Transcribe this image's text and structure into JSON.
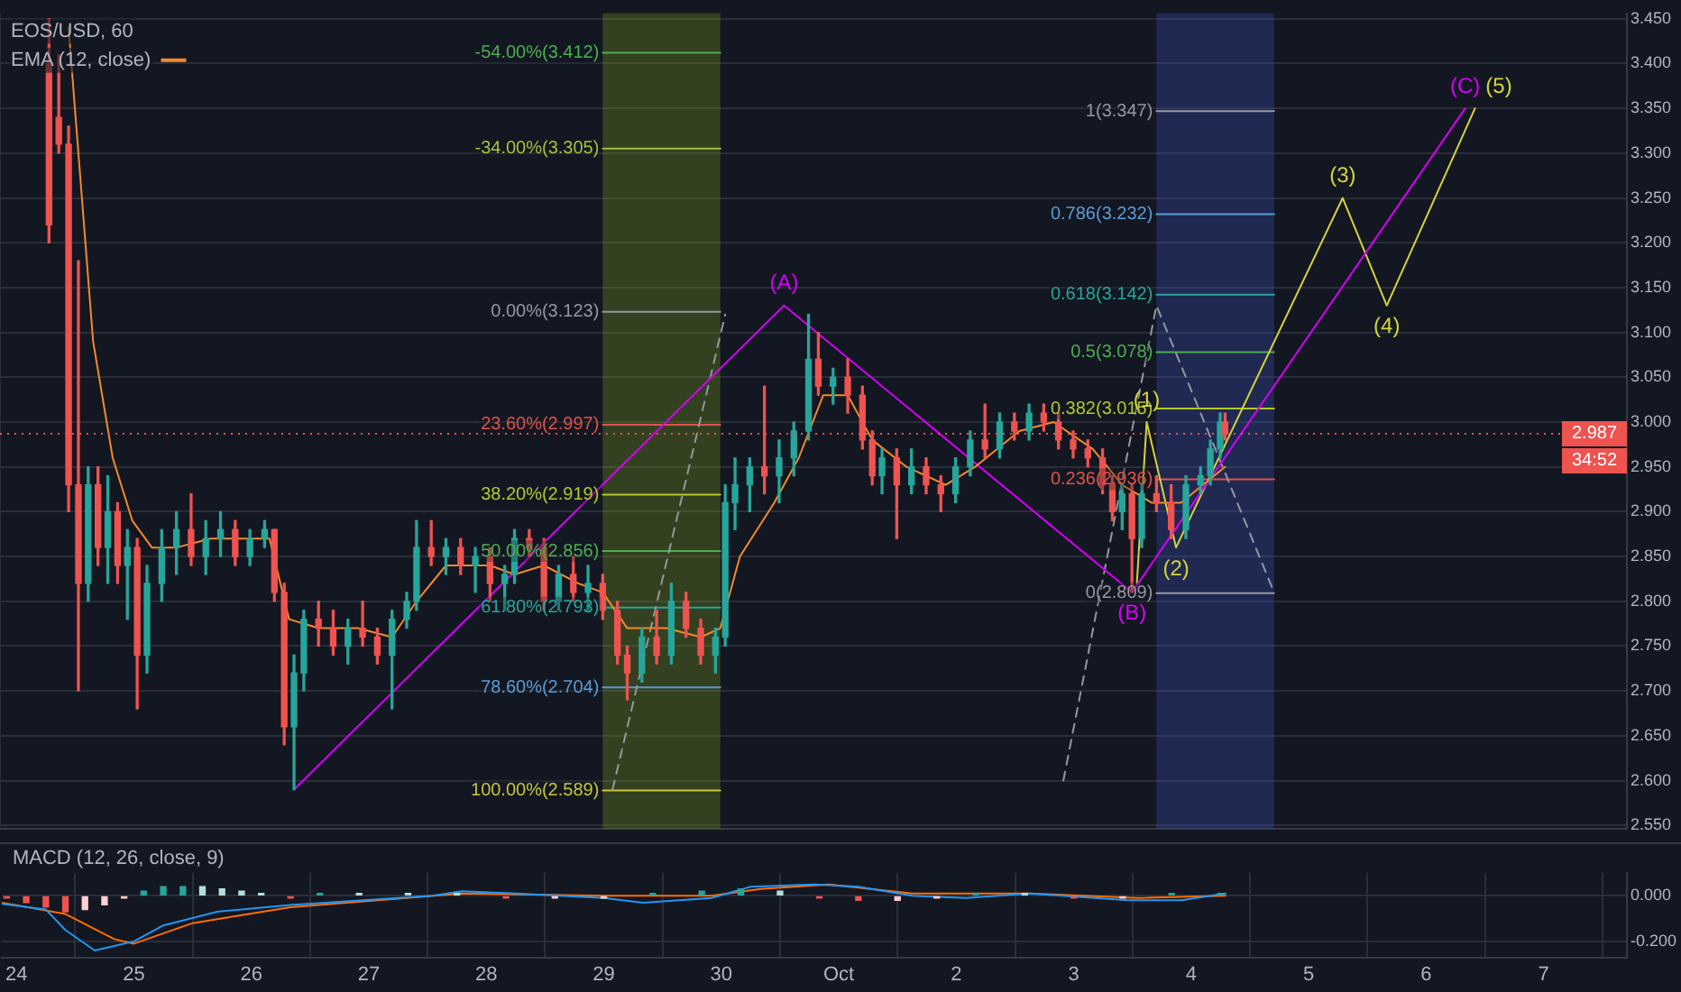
{
  "chart_data": [
    {
      "type": "candlestick",
      "title": "EOS/USD, 60",
      "x": [
        "--09-24T07:00",
        "--09-24T09:00",
        "--09-24T11:00",
        "--09-24T13:00",
        "--09-24T15:00",
        "--09-24T17:00",
        "--09-24T19:00",
        "--09-24T21:00",
        "--09-24T23:00",
        "--09-25T01:00",
        "--09-25T03:00",
        "--09-25T06:00",
        "--09-25T09:00",
        "--09-25T12:00",
        "--09-25T15:00",
        "--09-25T18:00",
        "--09-25T21:00",
        "--09-26T00:00",
        "--09-26T03:00",
        "--09-26T05:00",
        "--09-26T07:00",
        "--09-26T09:00",
        "--09-26T11:00",
        "--09-26T14:00",
        "--09-26T17:00",
        "--09-26T20:00",
        "--09-26T23:00",
        "--09-27T02:00",
        "--09-27T05:00",
        "--09-27T08:00",
        "--09-27T10:00",
        "--09-27T13:00",
        "--09-27T16:00",
        "--09-27T19:00",
        "--09-27T22:00",
        "--09-28T01:00",
        "--09-28T04:00",
        "--09-28T06:00",
        "--09-28T09:00",
        "--09-28T12:00",
        "--09-28T15:00",
        "--09-28T18:00",
        "--09-28T21:00",
        "--09-29T00:00",
        "--09-29T03:00",
        "--09-29T05:00",
        "--09-29T08:00",
        "--09-29T11:00",
        "--09-29T14:00",
        "--09-29T17:00",
        "--09-29T20:00",
        "--09-29T23:00",
        "--09-30T01:00",
        "--09-30T03:00",
        "--09-30T06:00",
        "--09-30T09:00",
        "--09-30T12:00",
        "--09-30T15:00",
        "--09-30T18:00",
        "--09-30T20:00",
        "--09-30T23:00",
        "--10-01T02:00",
        "--10-01T05:00",
        "--10-01T07:00",
        "--10-01T09:00",
        "--10-01T12:00",
        "--10-01T15:00",
        "--10-01T18:00",
        "--10-01T21:00",
        "--10-02T00:00",
        "--10-02T03:00",
        "--10-02T06:00",
        "--10-02T09:00",
        "--10-02T12:00",
        "--10-02T15:00",
        "--10-02T18:00",
        "--10-02T21:00",
        "--10-03T00:00",
        "--10-03T03:00",
        "--10-03T06:00",
        "--10-03T08:00",
        "--10-03T10:00",
        "--10-03T12:00",
        "--10-03T14:00",
        "--10-03T17:00",
        "--10-03T20:00",
        "--10-03T23:00",
        "--10-04T02:00",
        "--10-04T04:00",
        "--10-04T06:00",
        "--10-04T07:00"
      ],
      "ohlc": [
        [
          3.4,
          3.45,
          3.2,
          3.22
        ],
        [
          3.34,
          3.41,
          3.3,
          3.31
        ],
        [
          3.31,
          3.33,
          2.9,
          2.93
        ],
        [
          2.93,
          3.18,
          2.7,
          2.82
        ],
        [
          2.82,
          2.95,
          2.8,
          2.93
        ],
        [
          2.93,
          2.95,
          2.84,
          2.86
        ],
        [
          2.86,
          2.94,
          2.82,
          2.9
        ],
        [
          2.9,
          2.91,
          2.82,
          2.84
        ],
        [
          2.84,
          2.88,
          2.78,
          2.86
        ],
        [
          2.86,
          2.87,
          2.68,
          2.74
        ],
        [
          2.74,
          2.84,
          2.72,
          2.82
        ],
        [
          2.82,
          2.88,
          2.8,
          2.86
        ],
        [
          2.86,
          2.9,
          2.83,
          2.88
        ],
        [
          2.88,
          2.92,
          2.84,
          2.85
        ],
        [
          2.85,
          2.89,
          2.83,
          2.87
        ],
        [
          2.87,
          2.9,
          2.85,
          2.88
        ],
        [
          2.88,
          2.89,
          2.84,
          2.85
        ],
        [
          2.85,
          2.88,
          2.84,
          2.87
        ],
        [
          2.87,
          2.89,
          2.86,
          2.88
        ],
        [
          2.88,
          2.88,
          2.8,
          2.81
        ],
        [
          2.81,
          2.82,
          2.64,
          2.66
        ],
        [
          2.66,
          2.74,
          2.59,
          2.72
        ],
        [
          2.72,
          2.79,
          2.7,
          2.78
        ],
        [
          2.78,
          2.8,
          2.75,
          2.77
        ],
        [
          2.77,
          2.79,
          2.74,
          2.75
        ],
        [
          2.75,
          2.78,
          2.73,
          2.77
        ],
        [
          2.77,
          2.8,
          2.75,
          2.76
        ],
        [
          2.76,
          2.77,
          2.73,
          2.74
        ],
        [
          2.74,
          2.79,
          2.68,
          2.78
        ],
        [
          2.78,
          2.81,
          2.77,
          2.8
        ],
        [
          2.8,
          2.89,
          2.79,
          2.86
        ],
        [
          2.86,
          2.89,
          2.84,
          2.85
        ],
        [
          2.85,
          2.87,
          2.83,
          2.86
        ],
        [
          2.86,
          2.87,
          2.83,
          2.84
        ],
        [
          2.84,
          2.86,
          2.81,
          2.85
        ],
        [
          2.85,
          2.86,
          2.8,
          2.82
        ],
        [
          2.82,
          2.84,
          2.79,
          2.83
        ],
        [
          2.83,
          2.88,
          2.82,
          2.87
        ],
        [
          2.87,
          2.88,
          2.85,
          2.86
        ],
        [
          2.86,
          2.87,
          2.79,
          2.8
        ],
        [
          2.8,
          2.84,
          2.79,
          2.83
        ],
        [
          2.83,
          2.85,
          2.8,
          2.81
        ],
        [
          2.81,
          2.84,
          2.79,
          2.82
        ],
        [
          2.82,
          2.83,
          2.78,
          2.79
        ],
        [
          2.79,
          2.8,
          2.73,
          2.74
        ],
        [
          2.74,
          2.75,
          2.69,
          2.72
        ],
        [
          2.72,
          2.77,
          2.71,
          2.76
        ],
        [
          2.76,
          2.79,
          2.73,
          2.74
        ],
        [
          2.74,
          2.82,
          2.73,
          2.8
        ],
        [
          2.8,
          2.81,
          2.76,
          2.77
        ],
        [
          2.77,
          2.78,
          2.73,
          2.74
        ],
        [
          2.74,
          2.77,
          2.72,
          2.76
        ],
        [
          2.76,
          2.93,
          2.75,
          2.91
        ],
        [
          2.91,
          2.96,
          2.88,
          2.93
        ],
        [
          2.93,
          2.96,
          2.9,
          2.95
        ],
        [
          2.95,
          3.04,
          2.92,
          2.94
        ],
        [
          2.94,
          2.98,
          2.91,
          2.96
        ],
        [
          2.96,
          3.0,
          2.94,
          2.99
        ],
        [
          2.99,
          3.12,
          2.98,
          3.07
        ],
        [
          3.07,
          3.1,
          3.03,
          3.04
        ],
        [
          3.04,
          3.06,
          3.02,
          3.05
        ],
        [
          3.05,
          3.07,
          3.01,
          3.03
        ],
        [
          3.03,
          3.04,
          2.97,
          2.98
        ],
        [
          2.98,
          2.99,
          2.93,
          2.94
        ],
        [
          2.94,
          2.97,
          2.92,
          2.96
        ],
        [
          2.96,
          2.97,
          2.87,
          2.93
        ],
        [
          2.93,
          2.97,
          2.92,
          2.95
        ],
        [
          2.95,
          2.96,
          2.92,
          2.93
        ],
        [
          2.93,
          2.94,
          2.9,
          2.92
        ],
        [
          2.92,
          2.96,
          2.91,
          2.95
        ],
        [
          2.95,
          2.99,
          2.94,
          2.98
        ],
        [
          2.98,
          3.02,
          2.96,
          2.97
        ],
        [
          2.97,
          3.01,
          2.96,
          3.0
        ],
        [
          3.0,
          3.01,
          2.98,
          2.99
        ],
        [
          2.99,
          3.02,
          2.98,
          3.01
        ],
        [
          3.01,
          3.02,
          2.99,
          3.0
        ],
        [
          3.0,
          3.01,
          2.97,
          2.98
        ],
        [
          2.98,
          2.99,
          2.96,
          2.97
        ],
        [
          2.97,
          2.98,
          2.95,
          2.96
        ],
        [
          2.96,
          2.97,
          2.92,
          2.93
        ],
        [
          2.93,
          2.94,
          2.89,
          2.9
        ],
        [
          2.9,
          2.93,
          2.88,
          2.92
        ],
        [
          2.92,
          2.93,
          2.81,
          2.87
        ],
        [
          2.87,
          2.93,
          2.86,
          2.92
        ],
        [
          2.92,
          2.94,
          2.9,
          2.91
        ],
        [
          2.91,
          2.93,
          2.87,
          2.88
        ],
        [
          2.88,
          2.94,
          2.87,
          2.93
        ],
        [
          2.93,
          2.95,
          2.92,
          2.94
        ],
        [
          2.94,
          2.98,
          2.93,
          2.97
        ],
        [
          2.97,
          3.01,
          2.96,
          3.0
        ],
        [
          3.0,
          3.01,
          2.98,
          2.987
        ]
      ],
      "colors": [
        "#ef5350",
        "#ef5350",
        "#ef5350",
        "#ef5350",
        "#26a69a",
        "#ef5350",
        "#26a69a",
        "#ef5350",
        "#26a69a",
        "#ef5350",
        "#26a69a",
        "#26a69a",
        "#26a69a",
        "#ef5350",
        "#26a69a",
        "#26a69a",
        "#ef5350",
        "#26a69a",
        "#26a69a",
        "#ef5350",
        "#ef5350",
        "#26a69a",
        "#26a69a",
        "#ef5350",
        "#ef5350",
        "#26a69a",
        "#ef5350",
        "#ef5350",
        "#26a69a",
        "#26a69a",
        "#26a69a",
        "#ef5350",
        "#26a69a",
        "#ef5350",
        "#26a69a",
        "#ef5350",
        "#26a69a",
        "#26a69a",
        "#ef5350",
        "#ef5350",
        "#26a69a",
        "#ef5350",
        "#26a69a",
        "#ef5350",
        "#ef5350",
        "#ef5350",
        "#26a69a",
        "#ef5350",
        "#26a69a",
        "#ef5350",
        "#ef5350",
        "#26a69a",
        "#26a69a",
        "#26a69a",
        "#26a69a",
        "#ef5350",
        "#26a69a",
        "#26a69a",
        "#26a69a",
        "#ef5350",
        "#26a69a",
        "#ef5350",
        "#ef5350",
        "#ef5350",
        "#26a69a",
        "#ef5350",
        "#26a69a",
        "#ef5350",
        "#ef5350",
        "#26a69a",
        "#26a69a",
        "#ef5350",
        "#26a69a",
        "#ef5350",
        "#26a69a",
        "#ef5350",
        "#ef5350",
        "#ef5350",
        "#ef5350",
        "#ef5350",
        "#ef5350",
        "#26a69a",
        "#ef5350",
        "#26a69a",
        "#ef5350",
        "#ef5350",
        "#26a69a",
        "#26a69a",
        "#26a69a",
        "#26a69a",
        "#ef5350"
      ],
      "series": [
        {
          "name": "EMA (12, close)",
          "type": "line",
          "color": "#f5892b",
          "x": [
            "--09-24T11:00",
            "--09-24T13:00",
            "--09-24T16:00",
            "--09-24T20:00",
            "--09-25T00:00",
            "--09-25T04:00",
            "--09-25T09:00",
            "--09-25T16:00",
            "--09-26T00:00",
            "--09-26T04:00",
            "--09-26T08:00",
            "--09-26T14:00",
            "--09-26T22:00",
            "--09-27T05:00",
            "--09-27T10:00",
            "--09-27T16:00",
            "--09-28T01:00",
            "--09-28T06:00",
            "--09-28T12:00",
            "--09-28T19:00",
            "--09-29T00:00",
            "--09-29T05:00",
            "--09-29T13:00",
            "--09-29T20:00",
            "--09-30T00:00",
            "--09-30T04:00",
            "--09-30T11:00",
            "--09-30T16:00",
            "--09-30T21:00",
            "--10-01T02:00",
            "--10-01T07:00",
            "--10-01T14:00",
            "--10-01T22:00",
            "--10-02T04:00",
            "--10-02T13:00",
            "--10-02T20:00",
            "--10-03T04:00",
            "--10-03T10:00",
            "--10-03T16:00",
            "--10-03T22:00",
            "--10-04T07:00"
          ],
          "values": [
            3.44,
            3.3,
            3.09,
            2.96,
            2.89,
            2.86,
            2.86,
            2.87,
            2.87,
            2.87,
            2.78,
            2.77,
            2.77,
            2.76,
            2.8,
            2.84,
            2.84,
            2.83,
            2.84,
            2.82,
            2.81,
            2.77,
            2.77,
            2.76,
            2.77,
            2.85,
            2.91,
            2.96,
            3.03,
            3.03,
            2.98,
            2.95,
            2.93,
            2.95,
            2.99,
            3.0,
            2.97,
            2.93,
            2.91,
            2.91,
            2.95
          ]
        },
        {
          "type": "line",
          "color": "#d500f9",
          "x": [
            "--09-26T09:00",
            "--09-30T13:00",
            "--10-03T12:00",
            "--10-06T08:00"
          ],
          "values": [
            2.59,
            3.13,
            2.81,
            3.35
          ]
        },
        {
          "type": "line",
          "color": "#d4d43a",
          "x": [
            "--10-03T13:00",
            "--10-03T15:00",
            "--10-03T21:00",
            "--10-05T07:00",
            "--10-05T16:00",
            "--10-06T10:00"
          ],
          "values": [
            2.82,
            3.0,
            2.86,
            3.25,
            3.13,
            3.35
          ]
        },
        {
          "type": "line",
          "color": "#9598a1",
          "line_style": "dashed",
          "x": [
            "--09-29T02:00",
            "--09-30T01:00"
          ],
          "values": [
            2.59,
            3.12
          ]
        },
        {
          "type": "line",
          "color": "#9598a1",
          "line_style": "dashed",
          "x": [
            "--10-02T22:00",
            "--10-03T17:00",
            "--10-04T17:00"
          ],
          "values": [
            2.6,
            3.13,
            2.81
          ]
        },
        {
          "name": "-54.00%(3.412)",
          "type": "line",
          "color": "#4caf50",
          "x": [
            "--09-29T00:00",
            "--09-30T00:00"
          ],
          "values": [
            3.412,
            3.412
          ]
        },
        {
          "name": "-34.00%(3.305)",
          "type": "line",
          "color": "#a5c13a",
          "x": [
            "--09-29T00:00",
            "--09-30T00:00"
          ],
          "values": [
            3.305,
            3.305
          ]
        },
        {
          "name": "0.00%(3.123)",
          "type": "line",
          "color": "#9598a1",
          "x": [
            "--09-29T00:00",
            "--09-30T00:00"
          ],
          "values": [
            3.123,
            3.123
          ]
        },
        {
          "name": "23.60%(2.997)",
          "type": "line",
          "color": "#e0524a",
          "x": [
            "--09-29T00:00",
            "--09-30T00:00"
          ],
          "values": [
            2.997,
            2.997
          ]
        },
        {
          "name": "38.20%(2.919)",
          "type": "line",
          "color": "#b5c72b",
          "x": [
            "--09-29T00:00",
            "--09-30T00:00"
          ],
          "values": [
            2.919,
            2.919
          ]
        },
        {
          "name": "50.00%(2.856)",
          "type": "line",
          "color": "#4caf50",
          "x": [
            "--09-29T00:00",
            "--09-30T00:00"
          ],
          "values": [
            2.856,
            2.856
          ]
        },
        {
          "name": "61.80%(2.793)",
          "type": "line",
          "color": "#26a69a",
          "x": [
            "--09-29T00:00",
            "--09-30T00:00"
          ],
          "values": [
            2.793,
            2.793
          ]
        },
        {
          "name": "78.60%(2.704)",
          "type": "line",
          "color": "#5b9bd5",
          "x": [
            "--09-29T00:00",
            "--09-30T00:00"
          ],
          "values": [
            2.704,
            2.704
          ]
        },
        {
          "name": "100.00%(2.589)",
          "type": "line",
          "color": "#c6c63a",
          "x": [
            "--09-29T00:00",
            "--09-30T00:00"
          ],
          "values": [
            2.589,
            2.589
          ]
        },
        {
          "name": "1(3.347)",
          "type": "line",
          "color": "#9598a1",
          "x": [
            "--10-03T17:00",
            "--10-04T17:00"
          ],
          "values": [
            3.347,
            3.347
          ]
        },
        {
          "name": "0.786(3.232)",
          "type": "line",
          "color": "#5b9bd5",
          "x": [
            "--10-03T17:00",
            "--10-04T17:00"
          ],
          "values": [
            3.232,
            3.232
          ]
        },
        {
          "name": "0.618(3.142)",
          "type": "line",
          "color": "#26a69a",
          "x": [
            "--10-03T17:00",
            "--10-04T17:00"
          ],
          "values": [
            3.142,
            3.142
          ]
        },
        {
          "name": "0.5(3.078)",
          "type": "line",
          "color": "#4caf50",
          "x": [
            "--10-03T17:00",
            "--10-04T17:00"
          ],
          "values": [
            3.078,
            3.078
          ]
        },
        {
          "name": "0.382(3.015)",
          "type": "line",
          "color": "#b5c72b",
          "x": [
            "--10-03T17:00",
            "--10-04T17:00"
          ],
          "values": [
            3.015,
            3.015
          ]
        },
        {
          "name": "0.236(2.936)",
          "type": "line",
          "color": "#e0524a",
          "x": [
            "--10-03T17:00",
            "--10-04T17:00"
          ],
          "values": [
            2.936,
            2.936
          ]
        },
        {
          "name": "0(2.809)",
          "type": "line",
          "color": "#9598a1",
          "x": [
            "--10-03T17:00",
            "--10-04T17:00"
          ],
          "values": [
            2.809,
            2.809
          ]
        }
      ],
      "bands": [
        {
          "axis": "x",
          "from": "--09-29T00:00",
          "to": "--09-30T00:00",
          "color": "#7d9a1e"
        },
        {
          "axis": "x",
          "from": "--10-03T17:00",
          "to": "--10-04T17:00",
          "color": "#3f51b5"
        }
      ],
      "ref_lines": [
        {
          "axis": "y",
          "value": 2.987,
          "label": "2.987",
          "color": "#ef5350",
          "line_style": "dotted"
        }
      ],
      "annotations": [
        "34:52",
        {
          "text": "(A)",
          "x": "--09-30T13:00",
          "y": 3.13
        },
        {
          "text": "(B)",
          "x": "--10-03T12:00",
          "y": 2.81
        },
        {
          "text": "(C)",
          "x": "--10-06T08:00",
          "y": 3.35
        },
        {
          "text": "(1)",
          "x": "--10-03T15:00",
          "y": 3.0
        },
        {
          "text": "(2)",
          "x": "--10-03T21:00",
          "y": 2.86
        },
        {
          "text": "(3)",
          "x": "--10-05T07:00",
          "y": 3.25
        },
        {
          "text": "(4)",
          "x": "--10-05T16:00",
          "y": 3.13
        },
        {
          "text": "(5)",
          "x": "--10-06T10:00",
          "y": 3.35
        }
      ],
      "xlim": [
        "--09-23T21:00",
        "--10-07T17:00"
      ],
      "ylim": [
        2.546,
        3.456
      ],
      "xticks": [
        {
          "value": "--09-24",
          "label": null
        },
        {
          "value": "--09-25",
          "label": null
        },
        {
          "value": "--09-26",
          "label": null
        },
        {
          "value": "--09-27",
          "label": null
        },
        {
          "value": "--09-28",
          "label": null
        },
        {
          "value": "--09-29",
          "label": null
        },
        {
          "value": "--09-30",
          "label": null
        },
        {
          "value": "--10-01",
          "label": null
        },
        {
          "value": "--10-02",
          "label": null
        },
        {
          "value": "--10-03",
          "label": null
        },
        {
          "value": "--10-04",
          "label": null
        },
        {
          "value": "--10-05",
          "label": null
        },
        {
          "value": "--10-06",
          "label": null
        },
        {
          "value": "--10-07",
          "label": null
        }
      ],
      "yticks": [
        {
          "value": 2.55,
          "label": "2.550"
        },
        {
          "value": 2.6,
          "label": "2.600"
        },
        {
          "value": 2.65,
          "label": "2.650"
        },
        {
          "value": 2.7,
          "label": "2.700"
        },
        {
          "value": 2.75,
          "label": "2.750"
        },
        {
          "value": 2.8,
          "label": "2.800"
        },
        {
          "value": 2.85,
          "label": "2.850"
        },
        {
          "value": 2.9,
          "label": "2.900"
        },
        {
          "value": 2.95,
          "label": "2.950"
        },
        {
          "value": 3.0,
          "label": "3.000"
        },
        {
          "value": 3.05,
          "label": "3.050"
        },
        {
          "value": 3.1,
          "label": "3.100"
        },
        {
          "value": 3.15,
          "label": "3.150"
        },
        {
          "value": 3.2,
          "label": "3.200"
        },
        {
          "value": 3.25,
          "label": "3.250"
        },
        {
          "value": 3.3,
          "label": "3.300"
        },
        {
          "value": 3.35,
          "label": "3.350"
        },
        {
          "value": 3.4,
          "label": "3.400"
        },
        {
          "value": 3.45,
          "label": "3.450"
        }
      ],
      "tick_labels": "y",
      "grid": true,
      "legend": "top left"
    },
    {
      "type": "line",
      "title": "MACD (12, 26, close, 9)",
      "series": [
        {
          "type": "bar",
          "x": [
            "--09-23T22:00",
            "--09-24T02:00",
            "--09-24T06:00",
            "--09-24T10:00",
            "--09-24T14:00",
            "--09-24T18:00",
            "--09-24T22:00",
            "--09-25T02:00",
            "--09-25T06:00",
            "--09-25T10:00",
            "--09-25T14:00",
            "--09-25T18:00",
            "--09-25T22:00",
            "--09-26T02:00",
            "--09-26T08:00",
            "--09-26T14:00",
            "--09-26T22:00",
            "--09-27T08:00",
            "--09-27T18:00",
            "--09-28T04:00",
            "--09-28T14:00",
            "--09-29T00:00",
            "--09-29T10:00",
            "--09-29T20:00",
            "--09-30T04:00",
            "--09-30T12:00",
            "--09-30T20:00",
            "--10-01T04:00",
            "--10-01T12:00",
            "--10-01T20:00",
            "--10-02T04:00",
            "--10-02T14:00",
            "--10-03T00:00",
            "--10-03T10:00",
            "--10-03T20:00",
            "--10-04T06:00"
          ],
          "values": [
            -0.01,
            -0.03,
            -0.05,
            -0.07,
            -0.06,
            -0.04,
            -0.01,
            0.02,
            0.04,
            0.04,
            0.04,
            0.03,
            0.02,
            0.01,
            -0.01,
            0.01,
            0.01,
            0.01,
            0.01,
            -0.01,
            -0.01,
            -0.01,
            0.01,
            0.02,
            0.03,
            0.02,
            -0.01,
            -0.02,
            -0.02,
            -0.01,
            0.01,
            0.01,
            -0.01,
            -0.01,
            0.01,
            0.01
          ],
          "colors": [
            "#ef5350",
            "#ef5350",
            "#ef5350",
            "#ef5350",
            "#ffcdd2",
            "#ffcdd2",
            "#ffcdd2",
            "#26a69a",
            "#26a69a",
            "#26a69a",
            "#b2dfdb",
            "#b2dfdb",
            "#b2dfdb",
            "#b2dfdb",
            "#ef5350",
            "#26a69a",
            "#b2dfdb",
            "#b2dfdb",
            "#b2dfdb",
            "#ef5350",
            "#ffcdd2",
            "#ffcdd2",
            "#26a69a",
            "#26a69a",
            "#26a69a",
            "#b2dfdb",
            "#ef5350",
            "#ef5350",
            "#ffcdd2",
            "#ffcdd2",
            "#26a69a",
            "#b2dfdb",
            "#ef5350",
            "#ffcdd2",
            "#26a69a",
            "#26a69a"
          ]
        },
        {
          "type": "line",
          "color": "#2196f3",
          "x": [
            "--09-23T21:00",
            "--09-24T06:00",
            "--09-24T10:00",
            "--09-24T16:00",
            "--09-25T00:00",
            "--09-25T06:00",
            "--09-25T17:00",
            "--09-26T08:00",
            "--09-27T13:00",
            "--09-27T19:00",
            "--09-28T06:00",
            "--09-29T00:00",
            "--09-29T08:00",
            "--09-29T22:00",
            "--09-30T06:00",
            "--09-30T19:00",
            "--10-01T04:00",
            "--10-01T15:00",
            "--10-02T02:00",
            "--10-02T15:00",
            "--10-03T11:00",
            "--10-03T22:00",
            "--10-04T07:00"
          ],
          "values": [
            -0.035,
            -0.06,
            -0.15,
            -0.24,
            -0.2,
            -0.13,
            -0.07,
            -0.04,
            0.0,
            0.02,
            0.01,
            -0.01,
            -0.03,
            -0.01,
            0.04,
            0.05,
            0.04,
            0.0,
            -0.01,
            0.01,
            -0.02,
            -0.02,
            0.01
          ]
        },
        {
          "type": "line",
          "color": "#ff6d00",
          "x": [
            "--09-23T21:00",
            "--09-24T10:00",
            "--09-24T20:00",
            "--09-25T00:00",
            "--09-25T12:00",
            "--09-26T08:00",
            "--09-27T19:00",
            "--09-29T00:00",
            "--09-29T22:00",
            "--09-30T08:00",
            "--09-30T22:00",
            "--10-01T15:00",
            "--10-02T15:00",
            "--10-03T13:00",
            "--10-04T07:00"
          ],
          "values": [
            -0.03,
            -0.08,
            -0.19,
            -0.21,
            -0.12,
            -0.05,
            0.01,
            0.0,
            0.0,
            0.03,
            0.05,
            0.01,
            0.01,
            -0.01,
            0.0
          ]
        }
      ],
      "xlim": [
        "--09-23T21:00",
        "--10-07T17:00"
      ],
      "ylim": [
        -0.27,
        0.1
      ],
      "xticks": [
        {
          "value": "--09-24",
          "label": "24"
        },
        {
          "value": "--09-25",
          "label": "25"
        },
        {
          "value": "--09-26",
          "label": "26"
        },
        {
          "value": "--09-27",
          "label": "27"
        },
        {
          "value": "--09-28",
          "label": "28"
        },
        {
          "value": "--09-29",
          "label": "29"
        },
        {
          "value": "--09-30",
          "label": "30"
        },
        {
          "value": "--10-01",
          "label": "Oct"
        },
        {
          "value": "--10-02",
          "label": "2"
        },
        {
          "value": "--10-03",
          "label": "3"
        },
        {
          "value": "--10-04",
          "label": "4"
        },
        {
          "value": "--10-05",
          "label": "5"
        },
        {
          "value": "--10-06",
          "label": "6"
        },
        {
          "value": "--10-07",
          "label": "7"
        }
      ],
      "yticks": [
        {
          "value": -0.2,
          "label": "-0.200"
        },
        {
          "value": 0,
          "label": "0.000"
        }
      ],
      "grid": true
    }
  ]
}
